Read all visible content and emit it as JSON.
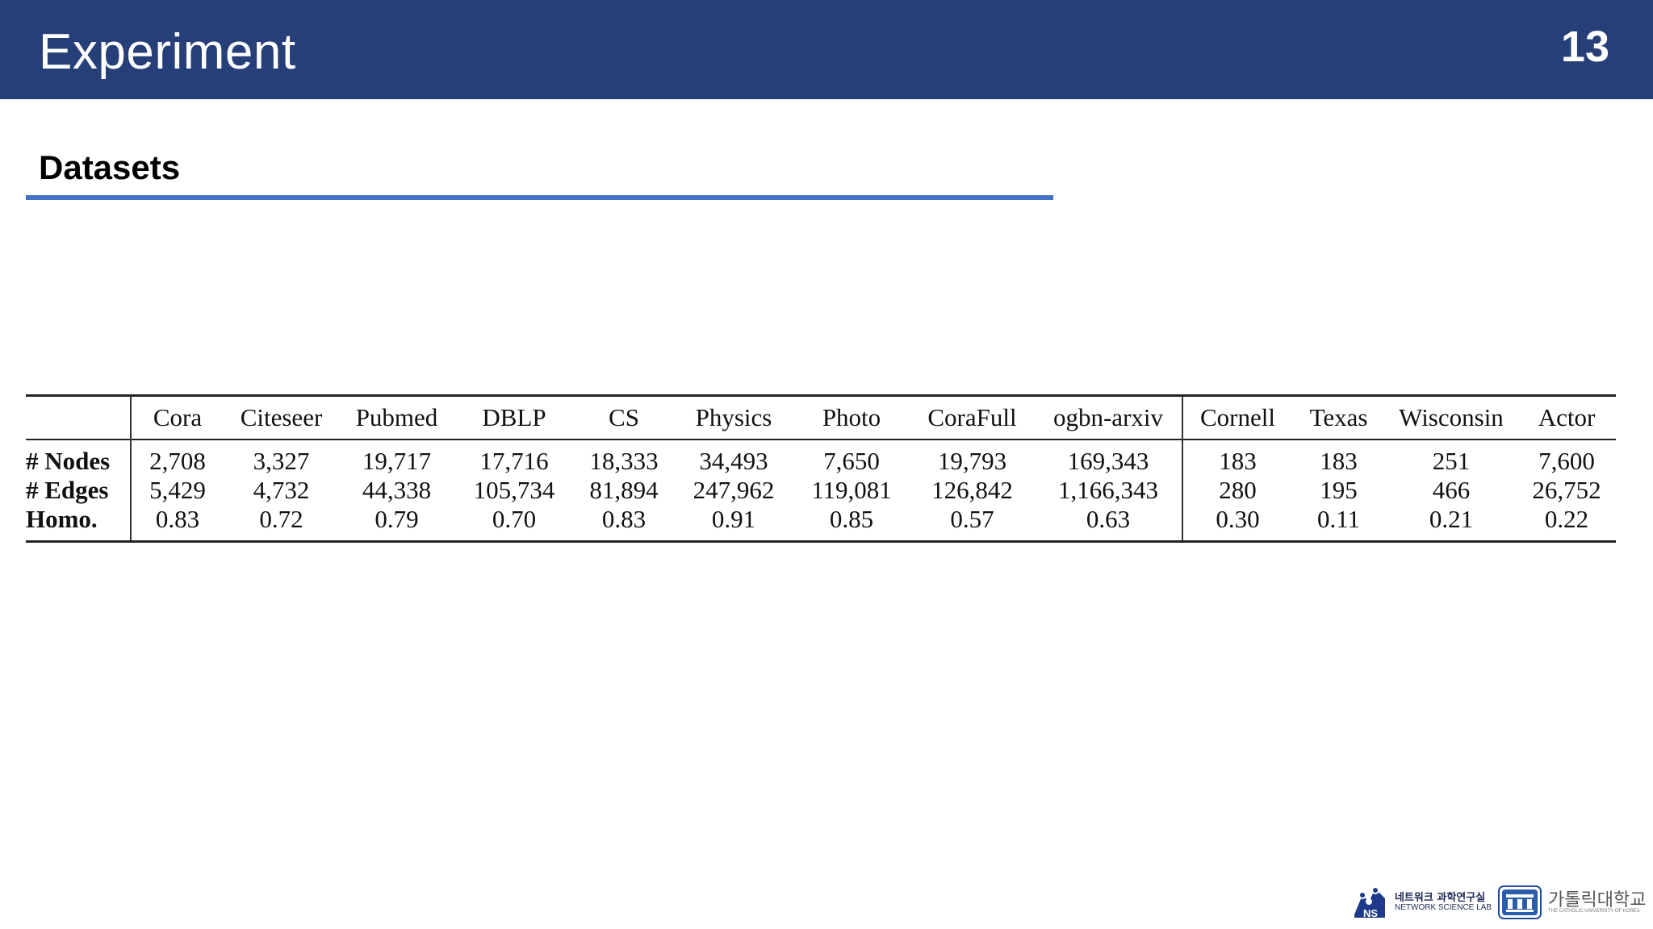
{
  "header": {
    "title": "Experiment",
    "slide_number": "13",
    "background_color": "#263f79"
  },
  "section": {
    "heading": "Datasets",
    "underline_color": "#4472c4"
  },
  "table": {
    "columns": [
      "Cora",
      "Citeseer",
      "Pubmed",
      "DBLP",
      "CS",
      "Physics",
      "Photo",
      "CoraFull",
      "ogbn-arxiv",
      "Cornell",
      "Texas",
      "Wisconsin",
      "Actor"
    ],
    "rows": [
      {
        "label": "# Nodes",
        "values": [
          "2,708",
          "3,327",
          "19,717",
          "17,716",
          "18,333",
          "34,493",
          "7,650",
          "19,793",
          "169,343",
          "183",
          "183",
          "251",
          "7,600"
        ]
      },
      {
        "label": "# Edges",
        "values": [
          "5,429",
          "4,732",
          "44,338",
          "105,734",
          "81,894",
          "247,962",
          "119,081",
          "126,842",
          "1,166,343",
          "280",
          "195",
          "466",
          "26,752"
        ]
      },
      {
        "label": "Homo.",
        "values": [
          "0.83",
          "0.72",
          "0.79",
          "0.70",
          "0.83",
          "0.91",
          "0.85",
          "0.57",
          "0.63",
          "0.30",
          "0.11",
          "0.21",
          "0.22"
        ]
      }
    ]
  },
  "footer": {
    "lab_logo_icon": "network-science-lab-logo",
    "lab_name_kr": "네트워크 과학연구실",
    "lab_name_en": "NETWORK SCIENCE LAB",
    "lab_logo_letters": "NS",
    "university_logo_icon": "catholic-university-emblem",
    "university_name_kr": "가톨릭대학교",
    "university_name_en": "THE CATHOLIC UNIVERSITY OF KOREA"
  }
}
